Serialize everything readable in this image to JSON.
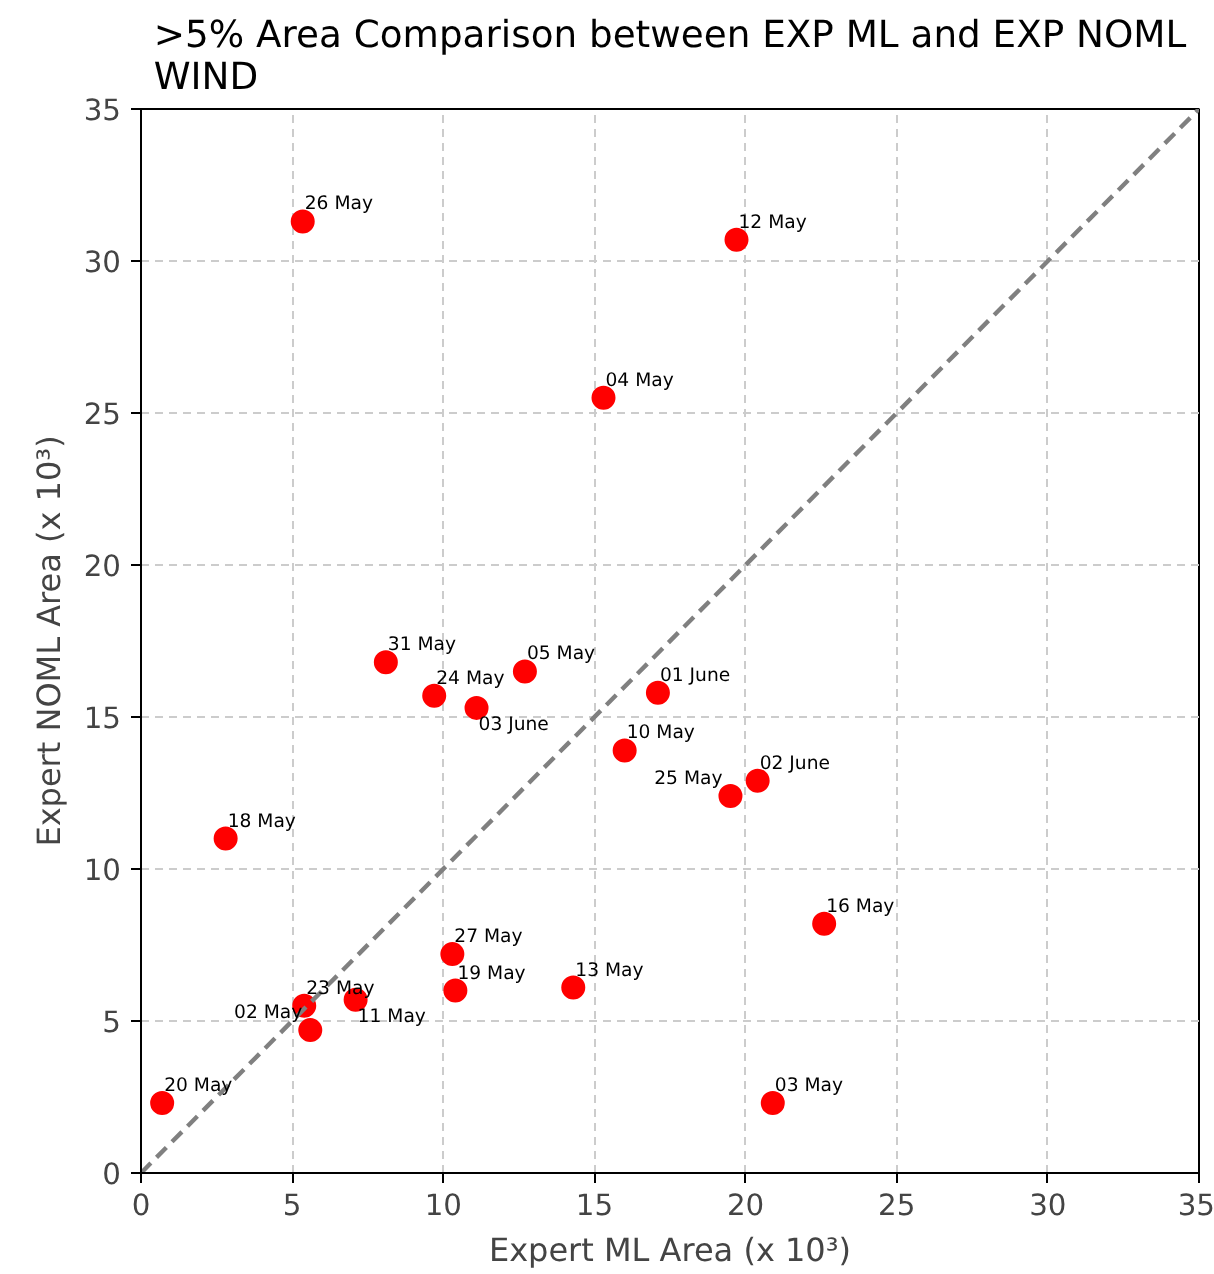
{
  "chart_data": {
    "type": "scatter",
    "title": ">5% Area Comparison between EXP ML and EXP NOML\nWIND",
    "xlabel": "Expert ML Area (x 10³)",
    "ylabel": "Expert NOML Area (x 10³)",
    "xlim": [
      0,
      35
    ],
    "ylim": [
      0,
      35
    ],
    "xticks": [
      0,
      5,
      10,
      15,
      20,
      25,
      30,
      35
    ],
    "yticks": [
      0,
      5,
      10,
      15,
      20,
      25,
      30,
      35
    ],
    "grid": true,
    "series": [
      {
        "color": "#ff0000",
        "marker": "circle",
        "x": [
          5.35,
          19.7,
          15.3,
          8.1,
          9.7,
          11.1,
          12.7,
          17.1,
          16.0,
          20.4,
          19.5,
          2.8,
          22.6,
          10.3,
          10.4,
          14.3,
          5.4,
          7.1,
          5.6,
          0.7,
          20.9
        ],
        "values": [
          31.3,
          30.7,
          25.5,
          16.8,
          15.7,
          15.3,
          16.5,
          15.8,
          13.9,
          12.9,
          12.4,
          11.0,
          8.2,
          7.2,
          6.0,
          6.1,
          5.5,
          5.7,
          4.7,
          2.3,
          2.3
        ]
      },
      {
        "type": "line",
        "color": "#808080",
        "line_style": "dashed",
        "marker": "none",
        "x": [
          0,
          35
        ],
        "values": [
          0,
          35
        ]
      }
    ],
    "annotations": [
      {
        "text": "26 May",
        "x": 5.35,
        "y": 31.3
      },
      {
        "text": "12 May",
        "x": 19.7,
        "y": 30.7
      },
      {
        "text": "04 May",
        "x": 15.3,
        "y": 25.5
      },
      {
        "text": "31 May",
        "x": 8.1,
        "y": 16.8
      },
      {
        "text": "24 May",
        "x": 9.7,
        "y": 15.7
      },
      {
        "text": "03 June",
        "x": 11.1,
        "y": 15.3
      },
      {
        "text": "05 May",
        "x": 12.7,
        "y": 16.5
      },
      {
        "text": "01 June",
        "x": 17.1,
        "y": 15.8
      },
      {
        "text": "10 May",
        "x": 16.0,
        "y": 13.9
      },
      {
        "text": "02 June",
        "x": 20.4,
        "y": 12.9
      },
      {
        "text": "25 May",
        "x": 19.5,
        "y": 12.4
      },
      {
        "text": "18 May",
        "x": 2.8,
        "y": 11.0
      },
      {
        "text": "16 May",
        "x": 22.6,
        "y": 8.2
      },
      {
        "text": "27 May",
        "x": 10.3,
        "y": 7.2
      },
      {
        "text": "19 May",
        "x": 10.4,
        "y": 6.0
      },
      {
        "text": "13 May",
        "x": 14.3,
        "y": 6.1
      },
      {
        "text": "23 May",
        "x": 5.4,
        "y": 5.5
      },
      {
        "text": "11 May",
        "x": 7.1,
        "y": 5.7
      },
      {
        "text": "02 May",
        "x": 5.6,
        "y": 4.7
      },
      {
        "text": "20 May",
        "x": 0.7,
        "y": 2.3
      },
      {
        "text": "03 May",
        "x": 20.9,
        "y": 2.3
      }
    ]
  }
}
